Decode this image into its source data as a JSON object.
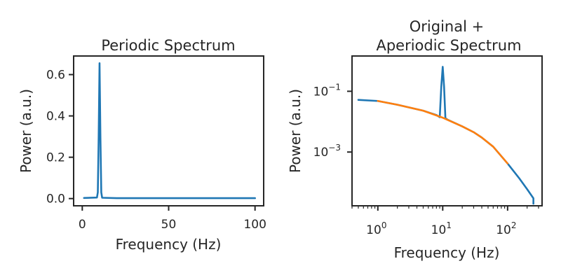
{
  "colors": {
    "blue": "#1f77b4",
    "orange": "#ff7f0e"
  },
  "chart_data": [
    {
      "type": "line",
      "title": "Periodic Spectrum",
      "xlabel": "Frequency (Hz)",
      "ylabel": "Power (a.u.)",
      "xlim": [
        -5,
        105
      ],
      "ylim": [
        -0.035,
        0.69
      ],
      "xticks": [
        0,
        50,
        100
      ],
      "xtick_labels": [
        "0",
        "50",
        "100"
      ],
      "yticks": [
        0.0,
        0.2,
        0.4,
        0.6
      ],
      "ytick_labels": [
        "0.0",
        "0.2",
        "0.4",
        "0.6"
      ],
      "grid": false,
      "series": [
        {
          "color": "#1f77b4",
          "x": [
            1,
            8.5,
            9,
            9.5,
            10,
            10.5,
            11,
            11.5,
            20,
            40,
            60,
            80,
            100
          ],
          "y": [
            0.003,
            0.005,
            0.03,
            0.3,
            0.655,
            0.3,
            0.03,
            0.004,
            0.002,
            0.002,
            0.002,
            0.002,
            0.002
          ]
        }
      ]
    },
    {
      "type": "line",
      "title": "Original +\nAperiodic Spectrum",
      "title_lines": [
        "Original +",
        "Aperiodic Spectrum"
      ],
      "xlabel": "Frequency (Hz)",
      "ylabel": "Power (a.u.)",
      "xscale": "log",
      "yscale": "log",
      "xlim": [
        0.4,
        340
      ],
      "ylim": [
        1.7e-05,
        1.45
      ],
      "xtick_labels": [
        {
          "base": "10",
          "exp": "0",
          "value": 1
        },
        {
          "base": "10",
          "exp": "1",
          "value": 10
        },
        {
          "base": "10",
          "exp": "2",
          "value": 100
        }
      ],
      "ytick_labels": [
        {
          "base": "10",
          "exp": "−1",
          "value": 0.1
        },
        {
          "base": "10",
          "exp": "−3",
          "value": 0.001
        }
      ],
      "grid": false,
      "series": [
        {
          "color": "#1f77b4",
          "x": [
            0.5,
            1,
            2,
            5,
            8,
            9,
            9.5,
            10,
            10.5,
            11,
            12,
            20,
            30,
            40,
            60,
            100,
            150,
            200,
            250,
            250
          ],
          "y": [
            0.052,
            0.048,
            0.036,
            0.023,
            0.0165,
            0.014,
            0.14,
            0.64,
            0.14,
            0.013,
            0.0115,
            0.007,
            0.0045,
            0.003,
            0.0015,
            0.00042,
            0.00014,
            6e-05,
            3e-05,
            2e-05
          ]
        },
        {
          "color": "#ff7f0e",
          "x": [
            1,
            2,
            5,
            10,
            20,
            30,
            40,
            60,
            100
          ],
          "y": [
            0.048,
            0.036,
            0.023,
            0.0135,
            0.007,
            0.0045,
            0.003,
            0.0015,
            0.00042
          ]
        }
      ]
    }
  ]
}
